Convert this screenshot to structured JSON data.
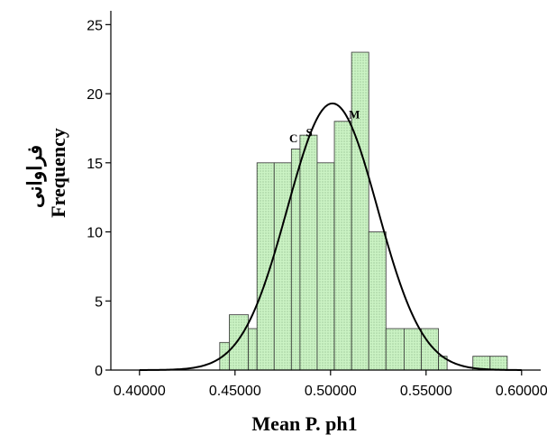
{
  "chart_data": {
    "type": "bar",
    "subtype": "histogram",
    "xlabel": "Mean P. ph1",
    "ylabel": "Frequency",
    "ylabel_secondary": "فراوانی",
    "xlim": [
      0.385,
      0.61
    ],
    "ylim": [
      0,
      26
    ],
    "x_ticks": [
      0.4,
      0.45,
      0.5,
      0.55,
      0.6
    ],
    "x_tick_labels": [
      "0.40000",
      "0.45000",
      "0.50000",
      "0.55000",
      "0.60000"
    ],
    "y_ticks": [
      0,
      5,
      10,
      15,
      20,
      25
    ],
    "y_tick_labels": [
      "0",
      "5",
      "10",
      "15",
      "20",
      "25"
    ],
    "bins": [
      {
        "start": 0.442,
        "end": 0.447,
        "count": 2
      },
      {
        "start": 0.447,
        "end": 0.457,
        "count": 4
      },
      {
        "start": 0.457,
        "end": 0.4615,
        "count": 3
      },
      {
        "start": 0.4615,
        "end": 0.4705,
        "count": 15
      },
      {
        "start": 0.4705,
        "end": 0.4795,
        "count": 15
      },
      {
        "start": 0.4795,
        "end": 0.484,
        "count": 16
      },
      {
        "start": 0.484,
        "end": 0.493,
        "count": 17
      },
      {
        "start": 0.493,
        "end": 0.502,
        "count": 15
      },
      {
        "start": 0.502,
        "end": 0.511,
        "count": 18
      },
      {
        "start": 0.511,
        "end": 0.52,
        "count": 23
      },
      {
        "start": 0.52,
        "end": 0.529,
        "count": 10
      },
      {
        "start": 0.529,
        "end": 0.5385,
        "count": 3
      },
      {
        "start": 0.5385,
        "end": 0.5475,
        "count": 3
      },
      {
        "start": 0.5475,
        "end": 0.5565,
        "count": 3
      },
      {
        "start": 0.5565,
        "end": 0.561,
        "count": 1
      },
      {
        "start": 0.5745,
        "end": 0.5835,
        "count": 1
      },
      {
        "start": 0.5835,
        "end": 0.5925,
        "count": 1
      }
    ],
    "normal_curve": {
      "mean": 0.501,
      "sd": 0.0236,
      "peak": 19.3
    },
    "annotations": [
      {
        "text": "C",
        "x": 0.4806,
        "y": 16.5
      },
      {
        "text": "S",
        "x": 0.4888,
        "y": 16.9
      },
      {
        "text": "M",
        "x": 0.5125,
        "y": 18.2
      }
    ],
    "colors": {
      "bar_fill": "#c8f0c0",
      "bar_stroke": "#333333",
      "curve": "#000000"
    }
  }
}
